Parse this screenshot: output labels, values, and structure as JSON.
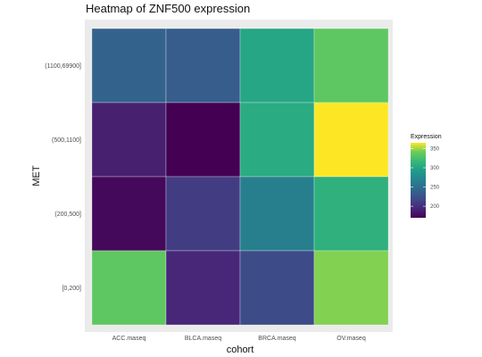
{
  "chart_data": {
    "type": "heatmap",
    "title": "Heatmap of ZNF500 expression",
    "xlabel": "cohort",
    "ylabel": "MET",
    "x_categories": [
      "ACC.maseq",
      "BLCA.maseq",
      "BRCA.maseq",
      "OV.maseq"
    ],
    "y_categories": [
      "[0,200]",
      "(200,500]",
      "(500,1100]",
      "(1100,69900]"
    ],
    "values": [
      [
        240,
        235,
        300,
        335
      ],
      [
        190,
        170,
        305,
        365
      ],
      [
        175,
        210,
        265,
        310
      ],
      [
        335,
        195,
        220,
        345
      ]
    ],
    "colorscale": "viridis",
    "color_range": [
      170,
      365
    ],
    "legend": {
      "title": "Expression",
      "ticks": [
        200,
        250,
        300,
        350
      ],
      "placement": "right"
    },
    "grid": true,
    "panel_background": "#ebebeb"
  }
}
